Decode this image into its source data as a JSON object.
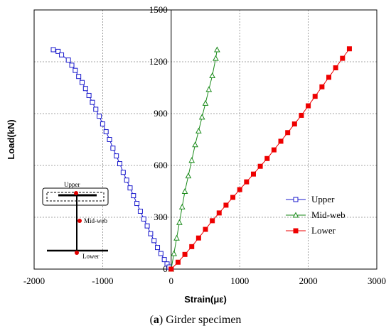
{
  "caption": {
    "tag": "a",
    "text": "Girder specimen"
  },
  "chart_data": {
    "type": "scatter",
    "xlabel": "Strain(με)",
    "ylabel": "Load(kN)",
    "xlim": [
      -2000,
      3000
    ],
    "ylim": [
      0,
      1500
    ],
    "xticks": [
      -2000,
      -1000,
      0,
      1000,
      2000,
      3000
    ],
    "yticks": [
      0,
      300,
      600,
      900,
      1200,
      1500
    ],
    "grid": true,
    "legend_position": "right",
    "series": [
      {
        "name": "Upper",
        "color": "#1a1acc",
        "marker": "square-open",
        "x": [
          -1720,
          -1650,
          -1600,
          -1500,
          -1450,
          -1400,
          -1350,
          -1300,
          -1250,
          -1200,
          -1150,
          -1100,
          -1050,
          -1000,
          -950,
          -900,
          -850,
          -800,
          -750,
          -700,
          -650,
          -600,
          -550,
          -500,
          -450,
          -400,
          -350,
          -300,
          -250,
          -200,
          -150,
          -100,
          -60,
          -30,
          0
        ],
        "y": [
          1270,
          1260,
          1240,
          1210,
          1180,
          1150,
          1115,
          1080,
          1045,
          1005,
          965,
          925,
          885,
          840,
          795,
          750,
          700,
          655,
          610,
          560,
          515,
          470,
          425,
          380,
          335,
          290,
          250,
          205,
          165,
          125,
          90,
          55,
          30,
          12,
          0
        ]
      },
      {
        "name": "Mid-web",
        "color": "#1a8a1a",
        "marker": "triangle-open",
        "x": [
          0,
          40,
          80,
          120,
          160,
          200,
          250,
          300,
          350,
          400,
          450,
          500,
          550,
          600,
          650,
          670
        ],
        "y": [
          0,
          90,
          180,
          270,
          360,
          450,
          540,
          630,
          720,
          800,
          880,
          960,
          1040,
          1120,
          1220,
          1270
        ]
      },
      {
        "name": "Lower",
        "color": "#ee0000",
        "marker": "square-filled",
        "x": [
          0,
          100,
          200,
          300,
          400,
          500,
          600,
          700,
          800,
          900,
          1000,
          1100,
          1200,
          1300,
          1400,
          1500,
          1600,
          1700,
          1800,
          1900,
          2000,
          2100,
          2200,
          2300,
          2400,
          2500,
          2600
        ],
        "y": [
          0,
          40,
          85,
          130,
          180,
          230,
          280,
          325,
          370,
          415,
          460,
          505,
          550,
          595,
          640,
          690,
          740,
          790,
          840,
          890,
          945,
          1000,
          1055,
          1110,
          1165,
          1220,
          1275
        ]
      }
    ],
    "inset": {
      "upper_label": "Upper",
      "mid_label": "Mid-web",
      "lower_label": "Lower"
    }
  }
}
